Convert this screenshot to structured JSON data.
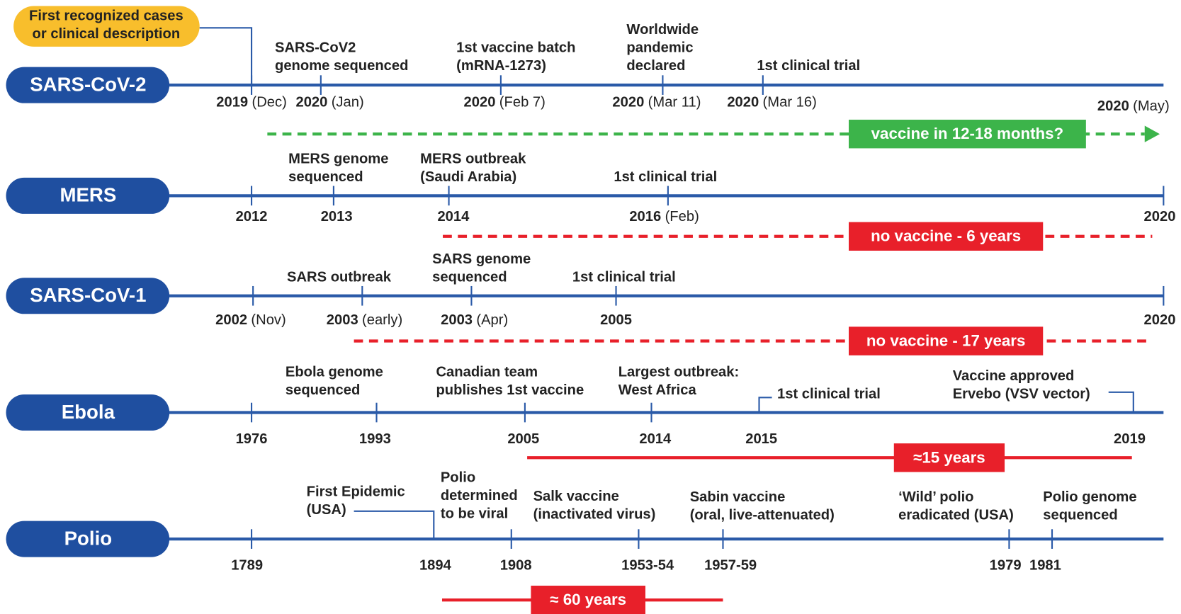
{
  "badge": [
    "First recognized cases",
    "or clinical description"
  ],
  "rows": [
    {
      "name": "SARS-CoV-2",
      "events": [
        {
          "year": "2019",
          "detail": "(Dec)"
        },
        {
          "label": [
            "SARS-CoV2",
            "genome sequenced"
          ],
          "year": "2020",
          "detail": "(Jan)"
        },
        {
          "label": [
            "1st vaccine batch",
            "(mRNA-1273)"
          ],
          "year": "2020",
          "detail": "(Feb 7)"
        },
        {
          "label": [
            "Worldwide",
            "pandemic",
            "declared"
          ],
          "year": "2020",
          "detail": "(Mar 11)"
        },
        {
          "label": [
            "1st clinical trial"
          ],
          "year": "2020",
          "detail": "(Mar 16)"
        },
        {
          "year": "2020",
          "detail": "(May)"
        }
      ],
      "span": "vaccine in 12-18 months?"
    },
    {
      "name": "MERS",
      "events": [
        {
          "year": "2012"
        },
        {
          "label": [
            "MERS genome",
            "sequenced"
          ],
          "year": "2013"
        },
        {
          "label": [
            "MERS outbreak",
            "(Saudi Arabia)"
          ],
          "year": "2014"
        },
        {
          "label": [
            "1st clinical trial"
          ],
          "year": "2016",
          "detail": "(Feb)"
        },
        {
          "year": "2020"
        }
      ],
      "span": "no vaccine - 6 years"
    },
    {
      "name": "SARS-CoV-1",
      "events": [
        {
          "year": "2002",
          "detail": "(Nov)"
        },
        {
          "label": [
            "SARS outbreak"
          ],
          "year": "2003",
          "detail": "(early)"
        },
        {
          "label": [
            "SARS genome",
            "sequenced"
          ],
          "year": "2003",
          "detail": "(Apr)"
        },
        {
          "label": [
            "1st clinical trial"
          ],
          "year": "2005"
        },
        {
          "year": "2020"
        }
      ],
      "span": "no vaccine - 17 years"
    },
    {
      "name": "Ebola",
      "events": [
        {
          "year": "1976"
        },
        {
          "label": [
            "Ebola genome",
            "sequenced"
          ],
          "year": "1993"
        },
        {
          "label": [
            "Canadian team",
            "publishes 1st vaccine"
          ],
          "year": "2005"
        },
        {
          "label": [
            "Largest outbreak:",
            "West Africa"
          ],
          "year": "2014"
        },
        {
          "label": [
            "1st clinical trial"
          ],
          "year": "2015"
        },
        {
          "label": [
            "Vaccine approved",
            "Ervebo (VSV vector)"
          ],
          "year": "2019"
        }
      ],
      "span": "≈15 years"
    },
    {
      "name": "Polio",
      "events": [
        {
          "year": "1789"
        },
        {
          "label": [
            "First Epidemic",
            "(USA)"
          ],
          "year": "1894"
        },
        {
          "label": [
            "Polio",
            "determined",
            "to be viral"
          ],
          "year": "1908"
        },
        {
          "label": [
            "Salk vaccine",
            "(inactivated virus)"
          ],
          "year": "1953-54"
        },
        {
          "label": [
            "Sabin vaccine",
            "(oral, live-attenuated)"
          ],
          "year": "1957-59"
        },
        {
          "label": [
            "‘Wild’ polio",
            "eradicated (USA)"
          ],
          "year": "1979"
        },
        {
          "label": [
            "Polio genome",
            "sequenced"
          ],
          "year": "1981"
        }
      ],
      "span": "≈ 60 years"
    }
  ]
}
